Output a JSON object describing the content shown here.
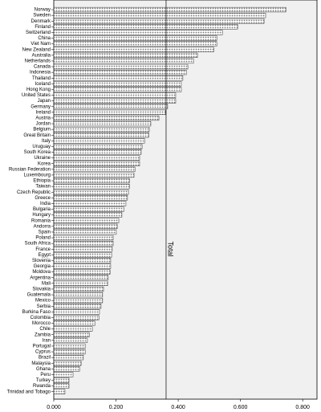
{
  "chart_data": {
    "type": "barh",
    "categories": [
      "Norway",
      "Sweden",
      "Denmark",
      "Finland",
      "Switzerland",
      "China",
      "Viet Nam",
      "New Zealand",
      "Australia",
      "Netherlands",
      "Canada",
      "Indonesia",
      "Thailand",
      "Iceland",
      "Hong Kong",
      "United States",
      "Japan",
      "Germany",
      "Ireland",
      "Austria",
      "Jordan",
      "Belgium",
      "Great Britain",
      "Italy",
      "Uruguay",
      "South Korea",
      "Ukraine",
      "Korea",
      "Russian Federation",
      "Luxembourg",
      "Ethiopia",
      "Taiwan",
      "Czech Republic",
      "Greece",
      "India",
      "Bulgaria",
      "Hungary",
      "Romania",
      "Andorra",
      "Spain",
      "Poland",
      "South Africa",
      "France",
      "Egypt",
      "Slovenia",
      "Georgia",
      "Moldova",
      "Argentina",
      "Mali",
      "Slovakia",
      "Guatemala",
      "Mexico",
      "Serbia",
      "Burkina Faso",
      "Colombia",
      "Morocco",
      "Chile",
      "Zambia",
      "Iran",
      "Portugal",
      "Cyprus",
      "Brazil",
      "Malaysia",
      "Ghana",
      "Peru",
      "Turkey",
      "Rwanda",
      "Trinidad and Tobago"
    ],
    "values": [
      0.746,
      0.681,
      0.676,
      0.591,
      0.542,
      0.524,
      0.524,
      0.514,
      0.462,
      0.449,
      0.431,
      0.426,
      0.415,
      0.41,
      0.41,
      0.392,
      0.392,
      0.366,
      0.359,
      0.338,
      0.312,
      0.307,
      0.305,
      0.292,
      0.284,
      0.281,
      0.276,
      0.276,
      0.261,
      0.258,
      0.243,
      0.243,
      0.24,
      0.237,
      0.232,
      0.225,
      0.219,
      0.209,
      0.204,
      0.201,
      0.191,
      0.191,
      0.188,
      0.186,
      0.183,
      0.183,
      0.181,
      0.175,
      0.173,
      0.16,
      0.157,
      0.157,
      0.152,
      0.147,
      0.145,
      0.132,
      0.124,
      0.114,
      0.108,
      0.101,
      0.101,
      0.095,
      0.088,
      0.083,
      0.062,
      0.049,
      0.049,
      0.036
    ],
    "color": "#c8c8c8",
    "xlim": [
      0,
      0.846
    ],
    "xticks": [
      {
        "value": 0,
        "label": "0.000"
      },
      {
        "value": 0.2,
        "label": "0.200"
      },
      {
        "value": 0.4,
        "label": "0.400"
      },
      {
        "value": 0.6,
        "label": "0.600"
      },
      {
        "value": 0.8,
        "label": "0.800"
      }
    ],
    "reference_line": {
      "value": 0.361,
      "label": "Total"
    }
  }
}
